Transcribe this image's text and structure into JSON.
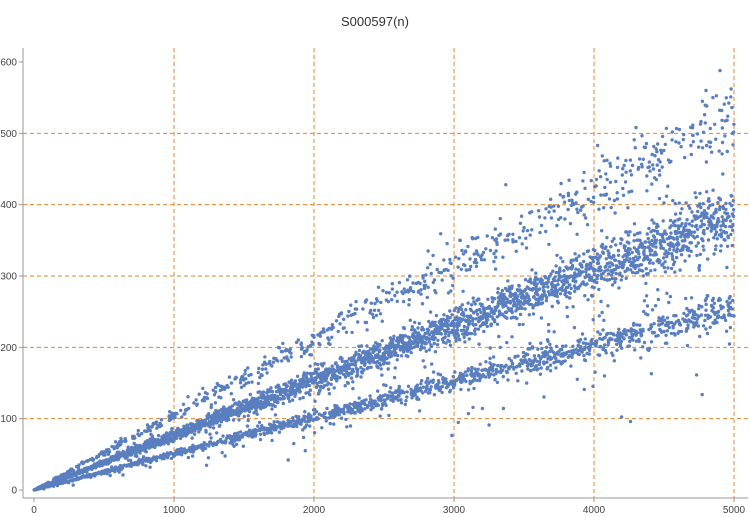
{
  "chart_data": {
    "type": "scatter",
    "title": "S000597(n)",
    "xlabel": "",
    "ylabel": "",
    "xlim": [
      0,
      5000
    ],
    "ylim": [
      0,
      600
    ],
    "x_ticks": [
      0,
      1000,
      2000,
      3000,
      4000,
      5000
    ],
    "y_ticks": [
      0,
      100,
      200,
      300,
      400,
      500,
      600
    ],
    "x_tick_labels": [
      "0",
      "1000",
      "2000",
      "3000",
      "4000",
      "5000"
    ],
    "y_tick_labels": [
      "0",
      "100",
      "200",
      "300",
      "400",
      "500",
      "600"
    ],
    "grid": true,
    "grid_style": "dashed",
    "colors": {
      "points": "#5a7fbf",
      "grid": "#e8862a",
      "axis": "#999999"
    },
    "series": [
      {
        "x_range": [
          1,
          5000
        ],
        "point_count": 5000,
        "bands": [
          {
            "slope": 0.077,
            "spread": 0.09,
            "weight": 0.55
          },
          {
            "slope": 0.051,
            "spread": 0.07,
            "weight": 0.25
          },
          {
            "slope": 0.105,
            "spread": 0.08,
            "weight": 0.15
          },
          {
            "slope": 0.052,
            "spread": 0.35,
            "weight": 0.05
          }
        ],
        "notable_points": [
          {
            "x": 4900,
            "y": 588
          },
          {
            "x": 4800,
            "y": 560
          },
          {
            "x": 4300,
            "y": 508
          },
          {
            "x": 3370,
            "y": 428
          },
          {
            "x": 4410,
            "y": 163
          }
        ]
      }
    ]
  }
}
